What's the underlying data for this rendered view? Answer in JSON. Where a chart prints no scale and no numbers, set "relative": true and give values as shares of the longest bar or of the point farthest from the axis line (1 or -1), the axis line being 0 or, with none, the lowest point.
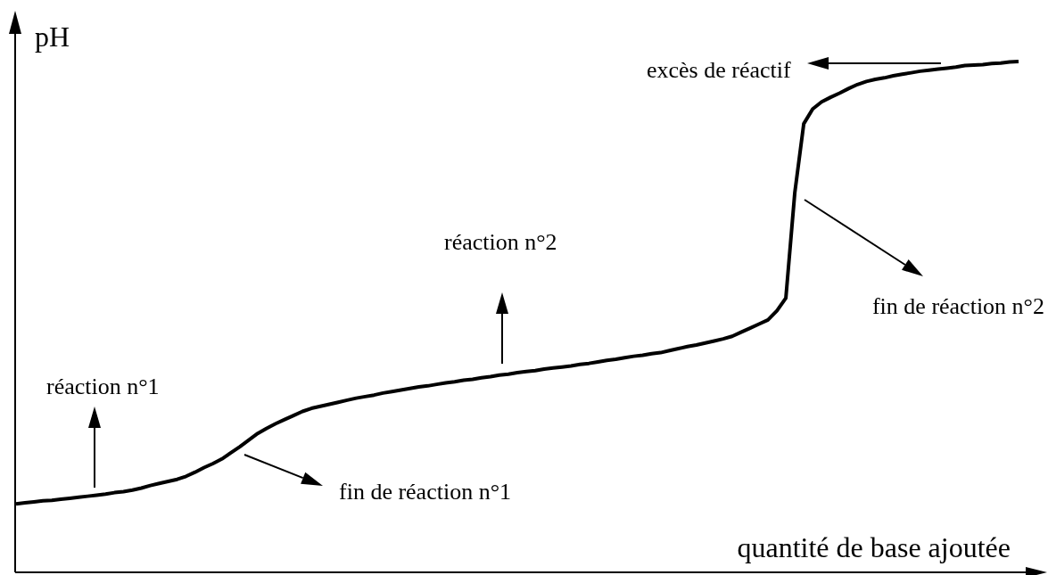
{
  "chart_data": {
    "type": "line",
    "relative": true,
    "xlabel": "quantité de base ajoutée",
    "ylabel": "pH",
    "categories": [
      null,
      null,
      null,
      null,
      null,
      null,
      null,
      null,
      null,
      null,
      null,
      null,
      null,
      null,
      null,
      null,
      null,
      null,
      null,
      null,
      null,
      null,
      null,
      null,
      null,
      null,
      null,
      null,
      null,
      null,
      null,
      null,
      null,
      null,
      null,
      null,
      null,
      null,
      null,
      null,
      null,
      null,
      null,
      null,
      null,
      null,
      null,
      null,
      null,
      null,
      null,
      null,
      null,
      null,
      null,
      null,
      null,
      null,
      null,
      null,
      null,
      null,
      null,
      null,
      null,
      null,
      null,
      null,
      null,
      null,
      null,
      null,
      null,
      null,
      null,
      null,
      null,
      null,
      null,
      null,
      null,
      null,
      null,
      null,
      null,
      null,
      null,
      null,
      null,
      null,
      null,
      null,
      null,
      null,
      null,
      null,
      null,
      null,
      null,
      null,
      null,
      null,
      null,
      null,
      null,
      null,
      null,
      null,
      null,
      null,
      null,
      null,
      null
    ],
    "series": [
      {
        "color": "#000000",
        "values": [
          0.134,
          0.136,
          0.138,
          0.14,
          0.141,
          0.143,
          0.145,
          0.147,
          0.149,
          0.151,
          0.153,
          0.156,
          0.158,
          0.161,
          0.165,
          0.17,
          0.174,
          0.178,
          0.182,
          0.188,
          0.196,
          0.205,
          0.213,
          0.222,
          0.234,
          0.246,
          0.259,
          0.272,
          0.282,
          0.291,
          0.299,
          0.307,
          0.315,
          0.321,
          0.325,
          0.329,
          0.333,
          0.337,
          0.341,
          0.344,
          0.347,
          0.351,
          0.354,
          0.357,
          0.36,
          0.363,
          0.365,
          0.368,
          0.371,
          0.373,
          0.376,
          0.378,
          0.381,
          0.383,
          0.386,
          0.388,
          0.391,
          0.393,
          0.395,
          0.398,
          0.4,
          0.402,
          0.404,
          0.407,
          0.409,
          0.412,
          0.415,
          0.417,
          0.42,
          0.423,
          0.425,
          0.428,
          0.43,
          0.434,
          0.438,
          0.442,
          0.445,
          0.449,
          0.453,
          0.457,
          0.462,
          0.47,
          0.478,
          0.486,
          0.494,
          0.512,
          0.537,
          0.743,
          0.878,
          0.907,
          0.921,
          0.93,
          0.938,
          0.947,
          0.955,
          0.961,
          0.965,
          0.968,
          0.972,
          0.975,
          0.978,
          0.981,
          0.983,
          0.985,
          0.987,
          0.989,
          0.992,
          0.993,
          0.994,
          0.996,
          0.997,
          0.999,
          1
        ]
      }
    ],
    "annotations": [
      "réaction n°1",
      "fin de réaction n°1",
      "réaction n°2",
      "fin de réaction n°2",
      "excès de réactif"
    ]
  }
}
